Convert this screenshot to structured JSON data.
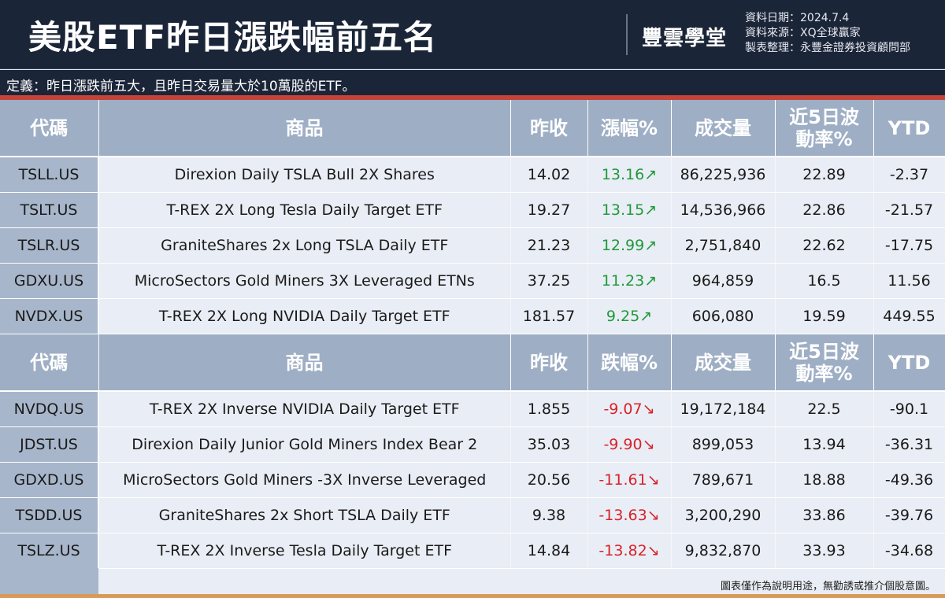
{
  "header": {
    "title": "美股ETF昨日漲跌幅前五名",
    "logo": "豐雲學堂",
    "meta": [
      "資料日期：2024.7.4",
      "資料來源：XQ全球贏家",
      "製表整理：永豐金證券投資顧問部"
    ]
  },
  "definition": "定義：昨日漲跌前五大，且昨日交易量大於10萬股的ETF。",
  "gainers": {
    "headers": [
      "代碼",
      "商品",
      "昨收",
      "漲幅%",
      "成交量",
      "近5日波動率%",
      "YTD"
    ],
    "rows": [
      [
        "TSLL.US",
        "Direxion Daily TSLA Bull 2X Shares",
        "14.02",
        "13.16↗",
        "86,225,936",
        "22.89",
        "-2.37"
      ],
      [
        "TSLT.US",
        "T-REX 2X Long Tesla Daily Target ETF",
        "19.27",
        "13.15↗",
        "14,536,966",
        "22.86",
        "-21.57"
      ],
      [
        "TSLR.US",
        "GraniteShares 2x Long TSLA Daily ETF",
        "21.23",
        "12.99↗",
        "2,751,840",
        "22.62",
        "-17.75"
      ],
      [
        "GDXU.US",
        "MicroSectors Gold Miners 3X Leveraged ETNs",
        "37.25",
        "11.23↗",
        "964,859",
        "16.5",
        "11.56"
      ],
      [
        "NVDX.US",
        "T-REX 2X Long NVIDIA Daily Target ETF",
        "181.57",
        "9.25↗",
        "606,080",
        "19.59",
        "449.55"
      ]
    ]
  },
  "losers": {
    "headers": [
      "代碼",
      "商品",
      "昨收",
      "跌幅%",
      "成交量",
      "近5日波動率%",
      "YTD"
    ],
    "rows": [
      [
        "NVDQ.US",
        "T-REX 2X Inverse NVIDIA Daily Target ETF",
        "1.855",
        "-9.07↘",
        "19,172,184",
        "22.5",
        "-90.1"
      ],
      [
        "JDST.US",
        "Direxion Daily Junior Gold Miners Index Bear 2",
        "35.03",
        "-9.90↘",
        "899,053",
        "13.94",
        "-36.31"
      ],
      [
        "GDXD.US",
        "MicroSectors Gold Miners -3X Inverse Leveraged",
        "20.56",
        "-11.61↘",
        "789,671",
        "18.88",
        "-49.36"
      ],
      [
        "TSDD.US",
        "GraniteShares 2x Short TSLA Daily ETF",
        "9.38",
        "-13.63↘",
        "3,200,290",
        "33.86",
        "-39.76"
      ],
      [
        "TSLZ.US",
        "T-REX 2X Inverse Tesla Daily Target ETF",
        "14.84",
        "-13.82↘",
        "9,832,870",
        "33.93",
        "-34.68"
      ]
    ]
  },
  "disclaimer": "圖表僅作為說明用途，無勸誘或推介個股意圖。",
  "colors": {
    "up": "#1f9a3a",
    "down": "#d8222a",
    "header_bg": "#1b2538",
    "accent": "#c5443a"
  }
}
